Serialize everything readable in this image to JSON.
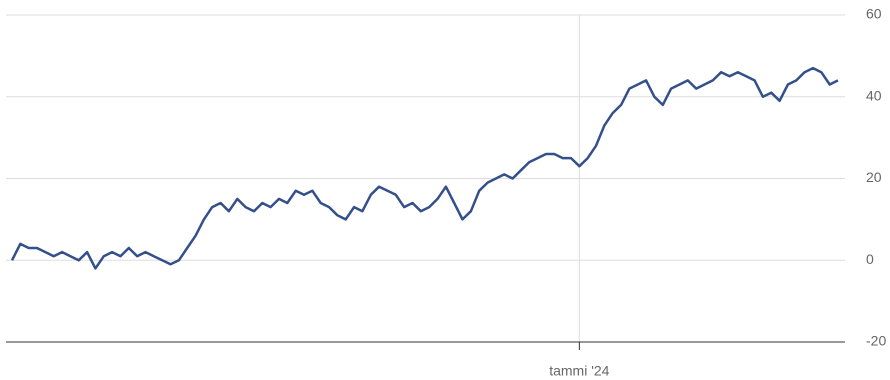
{
  "chart_data": {
    "type": "line",
    "categories": [
      null,
      null,
      null,
      null,
      null,
      null,
      null,
      null,
      null,
      null,
      null,
      null,
      null,
      null,
      null,
      null,
      null,
      null,
      null,
      null,
      null,
      null,
      null,
      null,
      null,
      null,
      null,
      null,
      null,
      null,
      null,
      null,
      null,
      null,
      null,
      null,
      null,
      null,
      null,
      null,
      null,
      null,
      null,
      null,
      null,
      null,
      null,
      null,
      null,
      null,
      null,
      null,
      null,
      null,
      null,
      null,
      null,
      null,
      null,
      null,
      null,
      null,
      null,
      null,
      null,
      null,
      null,
      null,
      "tammi '24",
      null,
      null,
      null,
      null,
      null,
      null,
      null,
      null,
      null,
      null,
      null,
      null,
      null,
      null,
      null,
      null,
      null,
      null,
      null,
      null,
      null,
      null,
      null,
      null,
      null,
      null,
      null,
      null,
      null,
      null,
      null
    ],
    "values": [
      0,
      4,
      3,
      3,
      2,
      1,
      2,
      1,
      0,
      2,
      -2,
      1,
      2,
      1,
      3,
      1,
      2,
      1,
      0,
      -1,
      0,
      3,
      6,
      10,
      13,
      14,
      12,
      15,
      13,
      12,
      14,
      13,
      15,
      14,
      17,
      16,
      17,
      14,
      13,
      11,
      10,
      13,
      12,
      16,
      18,
      17,
      16,
      13,
      14,
      12,
      13,
      15,
      18,
      14,
      10,
      12,
      17,
      19,
      20,
      21,
      20,
      22,
      24,
      25,
      26,
      26,
      25,
      25,
      23,
      25,
      28,
      33,
      36,
      38,
      42,
      43,
      44,
      40,
      38,
      42,
      43,
      44,
      42,
      43,
      44,
      46,
      45,
      46,
      45,
      44,
      40,
      41,
      39,
      43,
      44,
      46,
      47,
      46,
      43,
      44
    ],
    "color": "#34508a",
    "ylim": [
      -20,
      60
    ],
    "yticks": [
      -20,
      0,
      20,
      40,
      60
    ],
    "grid": true
  }
}
